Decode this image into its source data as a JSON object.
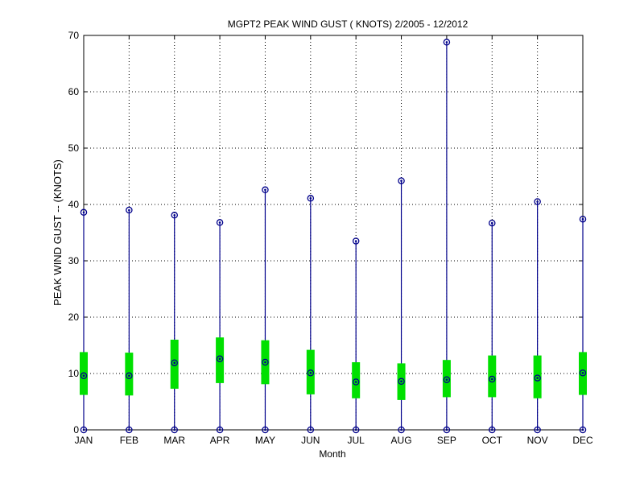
{
  "chart_data": {
    "type": "box",
    "title": "MGPT2  PEAK WIND GUST ( KNOTS) 2/2005 - 12/2012",
    "xlabel": "Month",
    "ylabel": "PEAK WIND GUST -- (KNOTS)",
    "ylim": [
      0,
      70
    ],
    "yticks": [
      0,
      10,
      20,
      30,
      40,
      50,
      60,
      70
    ],
    "grid": true,
    "categories": [
      "JAN",
      "FEB",
      "MAR",
      "APR",
      "MAY",
      "JUN",
      "JUL",
      "AUG",
      "SEP",
      "OCT",
      "NOV",
      "DEC"
    ],
    "series": [
      {
        "min": [
          0,
          0,
          0,
          0,
          0,
          0,
          0,
          0,
          0,
          0,
          0,
          0
        ],
        "q1": [
          6.2,
          6.1,
          7.3,
          8.3,
          8.1,
          6.3,
          5.6,
          5.3,
          5.8,
          5.8,
          5.6,
          6.2
        ],
        "median": [
          9.6,
          9.6,
          11.9,
          12.6,
          12.0,
          10.1,
          8.5,
          8.6,
          8.9,
          9.0,
          9.2,
          10.1
        ],
        "q3": [
          13.8,
          13.7,
          16.0,
          16.4,
          15.9,
          14.2,
          12.0,
          11.8,
          12.4,
          13.2,
          13.2,
          13.8
        ],
        "max": [
          38.6,
          39.0,
          38.1,
          36.8,
          42.6,
          41.1,
          33.5,
          44.2,
          68.8,
          36.7,
          40.5,
          37.4
        ]
      }
    ],
    "colors": {
      "whisker": "#00008B",
      "box": "#00E000",
      "marker": "#00008B",
      "grid": "#000000"
    }
  }
}
